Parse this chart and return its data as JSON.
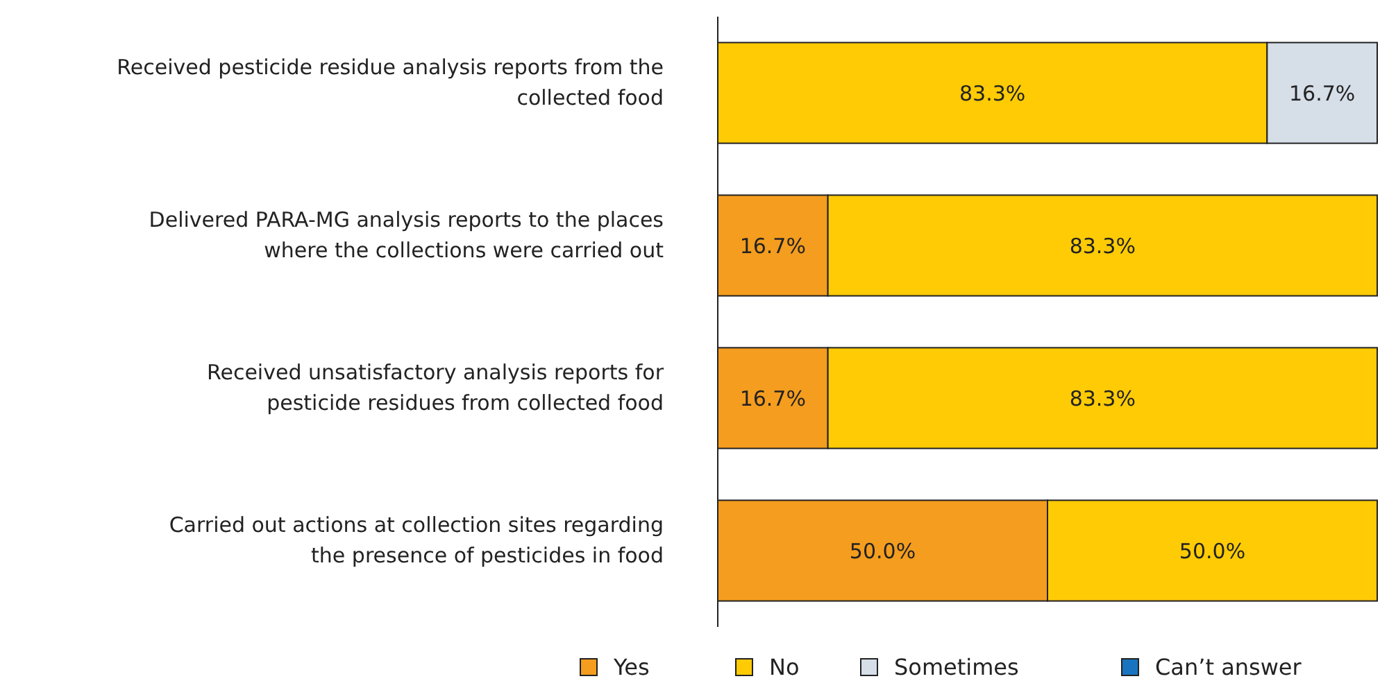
{
  "chart_data": {
    "type": "bar",
    "orientation": "horizontal",
    "stacked": true,
    "xlim": [
      0,
      100
    ],
    "tick_labels": "y",
    "legend": "bottom",
    "categories": [
      "Received pesticide residue analysis reports from the collected food",
      "Delivered PARA-MG analysis reports to the places where the collections were carried out",
      "Received unsatisfactory analysis reports for pesticide residues from collected food",
      "Carried out actions at collection sites regarding the presence of pesticides in food"
    ],
    "series": [
      {
        "name": "Yes",
        "color": "#f59d1e",
        "values": [
          null,
          16.7,
          16.7,
          50.0
        ],
        "value_labels": [
          null,
          "16.7%",
          "16.7%",
          "50.0%"
        ]
      },
      {
        "name": "No",
        "color": "#ffcb05",
        "values": [
          83.3,
          83.3,
          83.3,
          50.0
        ],
        "value_labels": [
          "83.3%",
          "83.3%",
          "83.3%",
          "50.0%"
        ]
      },
      {
        "name": "Sometimes",
        "color": "#d6dee8",
        "values": [
          16.7,
          null,
          null,
          null
        ],
        "value_labels": [
          "16.7%",
          null,
          null,
          null
        ]
      },
      {
        "name": "Can’t answer",
        "color": "#1874bf",
        "values": [
          null,
          null,
          null,
          null
        ]
      }
    ]
  }
}
